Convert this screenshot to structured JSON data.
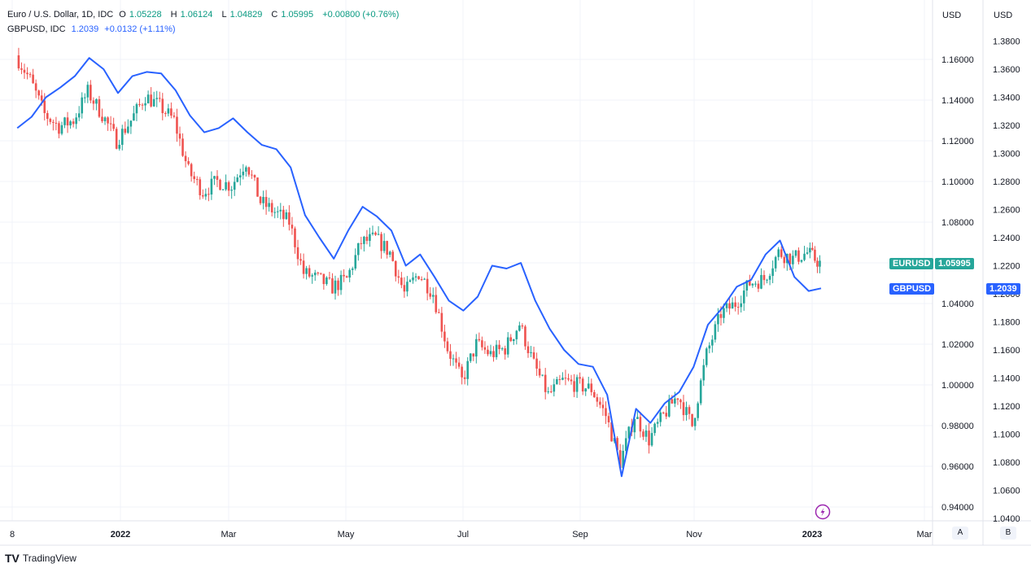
{
  "legend": {
    "series1": {
      "title": "Euro / U.S. Dollar, 1D, IDC",
      "o_label": "O",
      "o": "1.05228",
      "h_label": "H",
      "h": "1.06124",
      "l_label": "L",
      "l": "1.04829",
      "c_label": "C",
      "c": "1.05995",
      "change": "+0.00800 (+0.76%)"
    },
    "series2": {
      "title": "GBPUSD, IDC",
      "value": "1.2039",
      "change": "+0.0132 (+1.11%)"
    }
  },
  "axis_a_label": "USD",
  "axis_b_label": "USD",
  "tags": {
    "eurusd_name": "EURUSD",
    "eurusd_value": "1.05995",
    "gbpusd_name": "GBPUSD",
    "gbpusd_value": "1.2039"
  },
  "scale_buttons": {
    "a": "A",
    "b": "B"
  },
  "footer": {
    "logo": "TradingView"
  },
  "colors": {
    "up": "#26a69a",
    "down": "#ef5350",
    "gbp_line": "#2962ff",
    "eur_tag": "#26a69a",
    "gbp_tag": "#2962ff",
    "grid": "#f0f3fa"
  },
  "chart_data": {
    "type": "line",
    "x_ticks": [
      "8",
      "2022",
      "Mar",
      "May",
      "Jul",
      "Sep",
      "Nov",
      "2023",
      "Mar"
    ],
    "left_axis": {
      "series": "EURUSD",
      "ticks": [
        "1.16000",
        "1.14000",
        "1.12000",
        "1.10000",
        "1.08000",
        "1.06000",
        "1.04000",
        "1.02000",
        "1.00000",
        "0.98000",
        "0.96000",
        "0.94000"
      ],
      "ylim": [
        0.936,
        1.182
      ]
    },
    "right_axis": {
      "series": "GBPUSD",
      "ticks": [
        "1.3800",
        "1.3600",
        "1.3400",
        "1.3200",
        "1.3000",
        "1.2800",
        "1.2600",
        "1.2400",
        "1.2200",
        "1.2000",
        "1.1800",
        "1.1600",
        "1.1400",
        "1.1200",
        "1.1000",
        "1.0800",
        "1.0600",
        "1.0400"
      ],
      "ylim": [
        1.036,
        1.3897
      ]
    },
    "series": [
      {
        "name": "EURUSD",
        "style": "candles",
        "ohlc_approx_close": [
          [
            "2021-12-08",
            1.162
          ],
          [
            "2021-12-15",
            1.15
          ],
          [
            "2021-12-22",
            1.133
          ],
          [
            "2021-12-29",
            1.127
          ],
          [
            "2022-01-05",
            1.13
          ],
          [
            "2022-01-12",
            1.144
          ],
          [
            "2022-01-19",
            1.133
          ],
          [
            "2022-01-26",
            1.12
          ],
          [
            "2022-02-02",
            1.13
          ],
          [
            "2022-02-09",
            1.142
          ],
          [
            "2022-02-16",
            1.137
          ],
          [
            "2022-02-23",
            1.13
          ],
          [
            "2022-03-02",
            1.105
          ],
          [
            "2022-03-09",
            1.095
          ],
          [
            "2022-03-16",
            1.1
          ],
          [
            "2022-03-23",
            1.098
          ],
          [
            "2022-03-30",
            1.11
          ],
          [
            "2022-04-06",
            1.09
          ],
          [
            "2022-04-13",
            1.085
          ],
          [
            "2022-04-20",
            1.08
          ],
          [
            "2022-04-27",
            1.055
          ],
          [
            "2022-05-04",
            1.052
          ],
          [
            "2022-05-11",
            1.048
          ],
          [
            "2022-05-18",
            1.052
          ],
          [
            "2022-05-25",
            1.07
          ],
          [
            "2022-06-01",
            1.072
          ],
          [
            "2022-06-08",
            1.065
          ],
          [
            "2022-06-15",
            1.045
          ],
          [
            "2022-06-22",
            1.055
          ],
          [
            "2022-06-29",
            1.045
          ],
          [
            "2022-07-06",
            1.018
          ],
          [
            "2022-07-13",
            1.002
          ],
          [
            "2022-07-20",
            1.02
          ],
          [
            "2022-07-27",
            1.015
          ],
          [
            "2022-08-03",
            1.018
          ],
          [
            "2022-08-10",
            1.03
          ],
          [
            "2022-08-17",
            1.01
          ],
          [
            "2022-08-24",
            0.995
          ],
          [
            "2022-08-31",
            1.002
          ],
          [
            "2022-09-07",
            1.0
          ],
          [
            "2022-09-14",
            0.998
          ],
          [
            "2022-09-21",
            0.985
          ],
          [
            "2022-09-28",
            0.962
          ],
          [
            "2022-10-05",
            0.985
          ],
          [
            "2022-10-12",
            0.973
          ],
          [
            "2022-10-19",
            0.985
          ],
          [
            "2022-10-26",
            0.995
          ],
          [
            "2022-11-02",
            0.98
          ],
          [
            "2022-11-09",
            1.015
          ],
          [
            "2022-11-16",
            1.035
          ],
          [
            "2022-11-23",
            1.04
          ],
          [
            "2022-11-30",
            1.05
          ],
          [
            "2022-12-07",
            1.052
          ],
          [
            "2022-12-14",
            1.065
          ],
          [
            "2022-12-21",
            1.062
          ],
          [
            "2022-12-28",
            1.065
          ],
          [
            "2023-01-03",
            1.0599
          ]
        ]
      },
      {
        "name": "GBPUSD",
        "style": "line",
        "points": [
          [
            "2021-12-08",
            1.318
          ],
          [
            "2021-12-15",
            1.326
          ],
          [
            "2021-12-22",
            1.34
          ],
          [
            "2021-12-29",
            1.347
          ],
          [
            "2022-01-05",
            1.355
          ],
          [
            "2022-01-12",
            1.368
          ],
          [
            "2022-01-19",
            1.36
          ],
          [
            "2022-01-26",
            1.343
          ],
          [
            "2022-02-02",
            1.355
          ],
          [
            "2022-02-09",
            1.358
          ],
          [
            "2022-02-16",
            1.357
          ],
          [
            "2022-02-23",
            1.345
          ],
          [
            "2022-03-02",
            1.327
          ],
          [
            "2022-03-09",
            1.315
          ],
          [
            "2022-03-16",
            1.318
          ],
          [
            "2022-03-23",
            1.325
          ],
          [
            "2022-03-30",
            1.315
          ],
          [
            "2022-04-06",
            1.306
          ],
          [
            "2022-04-13",
            1.303
          ],
          [
            "2022-04-20",
            1.29
          ],
          [
            "2022-04-27",
            1.256
          ],
          [
            "2022-05-04",
            1.24
          ],
          [
            "2022-05-11",
            1.225
          ],
          [
            "2022-05-18",
            1.245
          ],
          [
            "2022-05-25",
            1.262
          ],
          [
            "2022-06-01",
            1.255
          ],
          [
            "2022-06-08",
            1.245
          ],
          [
            "2022-06-15",
            1.22
          ],
          [
            "2022-06-22",
            1.228
          ],
          [
            "2022-06-29",
            1.212
          ],
          [
            "2022-07-06",
            1.195
          ],
          [
            "2022-07-13",
            1.188
          ],
          [
            "2022-07-20",
            1.198
          ],
          [
            "2022-07-27",
            1.22
          ],
          [
            "2022-08-03",
            1.218
          ],
          [
            "2022-08-10",
            1.222
          ],
          [
            "2022-08-17",
            1.195
          ],
          [
            "2022-08-24",
            1.175
          ],
          [
            "2022-08-31",
            1.16
          ],
          [
            "2022-09-07",
            1.15
          ],
          [
            "2022-09-14",
            1.148
          ],
          [
            "2022-09-21",
            1.128
          ],
          [
            "2022-09-28",
            1.07
          ],
          [
            "2022-10-05",
            1.118
          ],
          [
            "2022-10-12",
            1.108
          ],
          [
            "2022-10-19",
            1.122
          ],
          [
            "2022-10-26",
            1.13
          ],
          [
            "2022-11-02",
            1.148
          ],
          [
            "2022-11-09",
            1.178
          ],
          [
            "2022-11-16",
            1.19
          ],
          [
            "2022-11-23",
            1.205
          ],
          [
            "2022-11-30",
            1.21
          ],
          [
            "2022-12-07",
            1.228
          ],
          [
            "2022-12-14",
            1.238
          ],
          [
            "2022-12-21",
            1.212
          ],
          [
            "2022-12-28",
            1.202
          ],
          [
            "2023-01-03",
            1.2039
          ]
        ]
      }
    ]
  }
}
